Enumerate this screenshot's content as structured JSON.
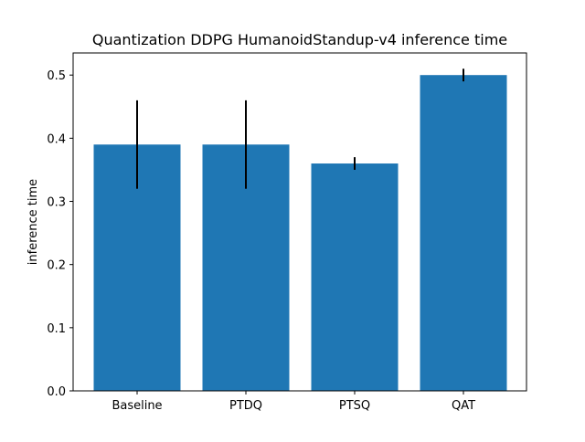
{
  "chart_data": {
    "type": "bar",
    "title": "Quantization DDPG HumanoidStandup-v4 inference time",
    "xlabel": "",
    "ylabel": "inference time",
    "categories": [
      "Baseline",
      "PTDQ",
      "PTSQ",
      "QAT"
    ],
    "values": [
      0.39,
      0.39,
      0.36,
      0.5
    ],
    "error_low": [
      0.32,
      0.32,
      0.35,
      0.49
    ],
    "error_high": [
      0.46,
      0.46,
      0.37,
      0.51
    ],
    "ylim": [
      0,
      0.535
    ],
    "yticks": [
      "0.0",
      "0.1",
      "0.2",
      "0.3",
      "0.4",
      "0.5"
    ],
    "bar_color": "#1f77b4",
    "error_color": "#000000",
    "grid": false,
    "legend": "none"
  }
}
